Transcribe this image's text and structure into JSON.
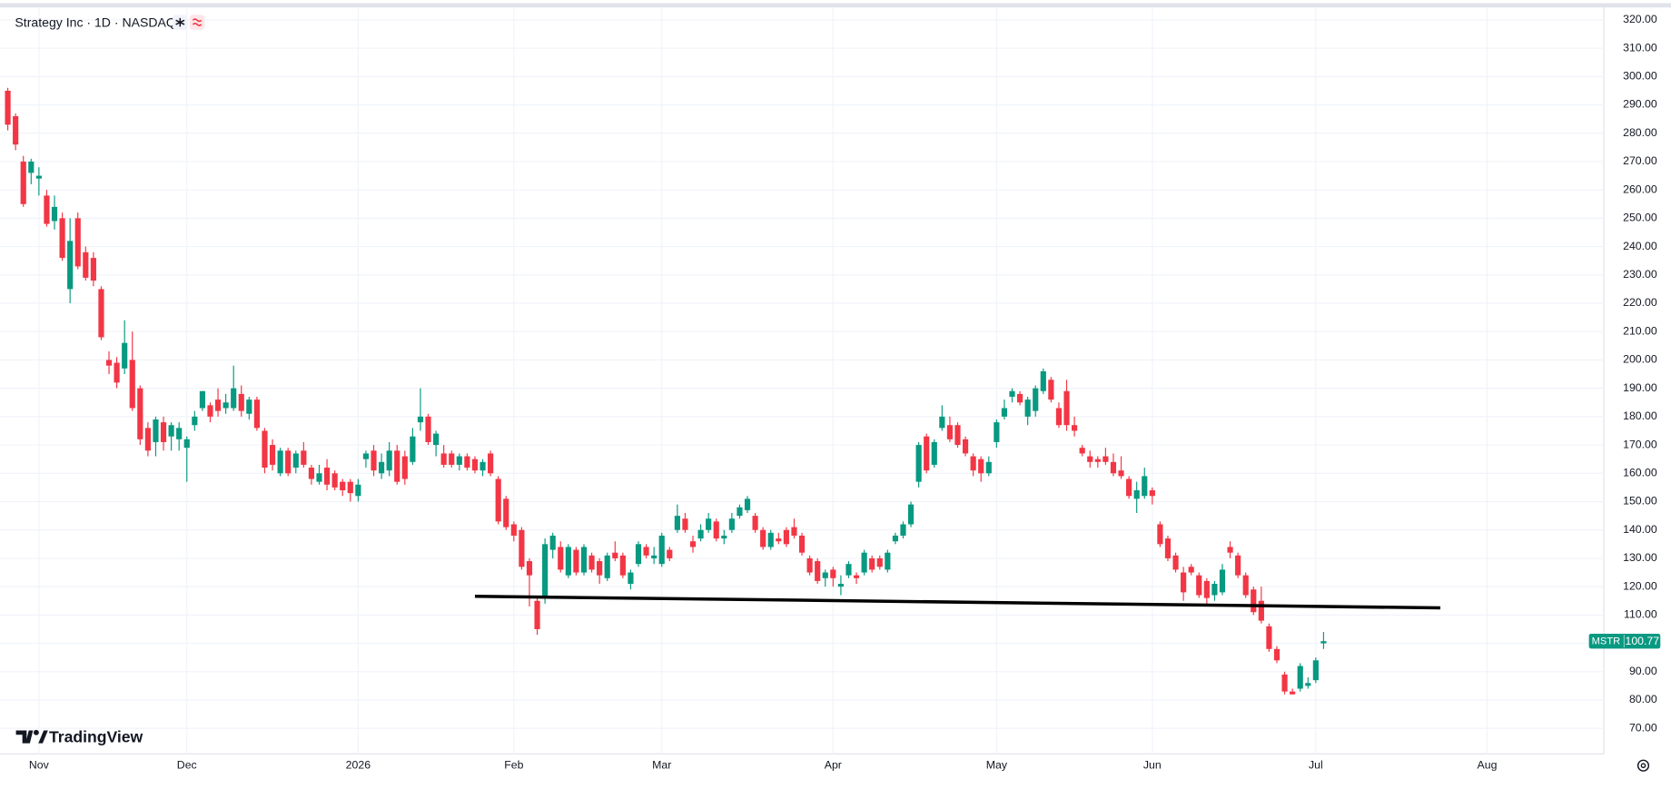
{
  "chart_data": {
    "type": "candlestick",
    "title": "Strategy Inc · 1D · NASDAQ",
    "symbol": "MSTR",
    "brand": "TradingView",
    "up_color": "#089981",
    "down_color": "#f23645",
    "grid": true,
    "xlim": [
      -1,
      205
    ],
    "xticks": [
      {
        "value": 4,
        "label": "Nov"
      },
      {
        "value": 23,
        "label": "Dec"
      },
      {
        "value": 45,
        "label": "2026"
      },
      {
        "value": 65,
        "label": "Feb"
      },
      {
        "value": 84,
        "label": "Mar"
      },
      {
        "value": 106,
        "label": "Apr"
      },
      {
        "value": 127,
        "label": "May"
      },
      {
        "value": 147,
        "label": "Jun"
      },
      {
        "value": 168,
        "label": "Jul"
      },
      {
        "value": 190,
        "label": "Aug"
      }
    ],
    "ylim": [
      61,
      324
    ],
    "yticks": [
      {
        "value": 70,
        "label": "70.00"
      },
      {
        "value": 80,
        "label": "80.00"
      },
      {
        "value": 90,
        "label": "90.00"
      },
      {
        "value": 100,
        "label": "100.00"
      },
      {
        "value": 110,
        "label": "110.00"
      },
      {
        "value": 120,
        "label": "120.00"
      },
      {
        "value": 130,
        "label": "130.00"
      },
      {
        "value": 140,
        "label": "140.00"
      },
      {
        "value": 150,
        "label": "150.00"
      },
      {
        "value": 160,
        "label": "160.00"
      },
      {
        "value": 170,
        "label": "170.00"
      },
      {
        "value": 180,
        "label": "180.00"
      },
      {
        "value": 190,
        "label": "190.00"
      },
      {
        "value": 200,
        "label": "200.00"
      },
      {
        "value": 210,
        "label": "210.00"
      },
      {
        "value": 220,
        "label": "220.00"
      },
      {
        "value": 230,
        "label": "230.00"
      },
      {
        "value": 240,
        "label": "240.00"
      },
      {
        "value": 250,
        "label": "250.00"
      },
      {
        "value": 260,
        "label": "260.00"
      },
      {
        "value": 270,
        "label": "270.00"
      },
      {
        "value": 280,
        "label": "280.00"
      },
      {
        "value": 290,
        "label": "290.00"
      },
      {
        "value": 300,
        "label": "300.00"
      },
      {
        "value": 310,
        "label": "310.00"
      },
      {
        "value": 320,
        "label": "320.00"
      }
    ],
    "trendline": {
      "x": [
        60,
        184
      ],
      "y": [
        116.6,
        112.5
      ]
    },
    "candles": [
      [
        295,
        296,
        281,
        283
      ],
      [
        286,
        287,
        274,
        276
      ],
      [
        270,
        272,
        254,
        255
      ],
      [
        266,
        271,
        262,
        270
      ],
      [
        264,
        268,
        258,
        265
      ],
      [
        258,
        260,
        247,
        248
      ],
      [
        249,
        258,
        246,
        254
      ],
      [
        250,
        252,
        235,
        236
      ],
      [
        225,
        250,
        220,
        242
      ],
      [
        250,
        252,
        232,
        233
      ],
      [
        238,
        240,
        228,
        229
      ],
      [
        236,
        238,
        226,
        228
      ],
      [
        225,
        226,
        207,
        208
      ],
      [
        200,
        203,
        195,
        198
      ],
      [
        199,
        201,
        190,
        192
      ],
      [
        197,
        214,
        195,
        206
      ],
      [
        200,
        210,
        182,
        183
      ],
      [
        190,
        191,
        170,
        172
      ],
      [
        176,
        178,
        166,
        168
      ],
      [
        171,
        180,
        166,
        179
      ],
      [
        178,
        180,
        168,
        171
      ],
      [
        173,
        178,
        168,
        177
      ],
      [
        172,
        178,
        168,
        176
      ],
      [
        169,
        173,
        157,
        172
      ],
      [
        177,
        182,
        175,
        180
      ],
      [
        183,
        189,
        182,
        189
      ],
      [
        184,
        185,
        178,
        180
      ],
      [
        186,
        190,
        180,
        182
      ],
      [
        183,
        188,
        181,
        185
      ],
      [
        183,
        198,
        182,
        190
      ],
      [
        188,
        191,
        180,
        182
      ],
      [
        181,
        187,
        179,
        186
      ],
      [
        186,
        187,
        175,
        176
      ],
      [
        175,
        176,
        160,
        162
      ],
      [
        170,
        172,
        161,
        163
      ],
      [
        160,
        169,
        159,
        168
      ],
      [
        168,
        169,
        159,
        160
      ],
      [
        162,
        168,
        160,
        167
      ],
      [
        168,
        171,
        162,
        163
      ],
      [
        162,
        163,
        156,
        158
      ],
      [
        157,
        163,
        156,
        160
      ],
      [
        162,
        165,
        154,
        156
      ],
      [
        160,
        161,
        154,
        155
      ],
      [
        157,
        158,
        152,
        154
      ],
      [
        157,
        158,
        150,
        153
      ],
      [
        152,
        158,
        150,
        156
      ],
      [
        165,
        168,
        162,
        167
      ],
      [
        168,
        170,
        159,
        161
      ],
      [
        160,
        167,
        158,
        164
      ],
      [
        161,
        171,
        159,
        168
      ],
      [
        168,
        170,
        156,
        157
      ],
      [
        166,
        168,
        156,
        158
      ],
      [
        164,
        176,
        163,
        173
      ],
      [
        178,
        190,
        175,
        180
      ],
      [
        180,
        181,
        170,
        171
      ],
      [
        170,
        175,
        166,
        174
      ],
      [
        167,
        170,
        162,
        163
      ],
      [
        167,
        168,
        162,
        163
      ],
      [
        163,
        167,
        161,
        166
      ],
      [
        166,
        167,
        161,
        162
      ],
      [
        165,
        166,
        160,
        161
      ],
      [
        161,
        165,
        159,
        164
      ],
      [
        167,
        168,
        159,
        160
      ],
      [
        158,
        159,
        142,
        143
      ],
      [
        151,
        152,
        140,
        141
      ],
      [
        142,
        143,
        136,
        138
      ],
      [
        140,
        141,
        126,
        127
      ],
      [
        129,
        130,
        113,
        124
      ],
      [
        115,
        116,
        103,
        105
      ],
      [
        116,
        137,
        114,
        135
      ],
      [
        133,
        139,
        130,
        138
      ],
      [
        134,
        136,
        125,
        126
      ],
      [
        124,
        135,
        123,
        134
      ],
      [
        133,
        134,
        124,
        125
      ],
      [
        125,
        135,
        124,
        134
      ],
      [
        131,
        132,
        125,
        126
      ],
      [
        129,
        130,
        121,
        124
      ],
      [
        123,
        132,
        122,
        131
      ],
      [
        132,
        136,
        129,
        130
      ],
      [
        131,
        132,
        123,
        124
      ],
      [
        121,
        126,
        119,
        125
      ],
      [
        128,
        136,
        127,
        135
      ],
      [
        134,
        135,
        130,
        131
      ],
      [
        130,
        134,
        128,
        131
      ],
      [
        128,
        139,
        127,
        138
      ],
      [
        133,
        134,
        129,
        130
      ],
      [
        140,
        149,
        139,
        145
      ],
      [
        144,
        146,
        139,
        140
      ],
      [
        136,
        138,
        132,
        134
      ],
      [
        137,
        142,
        136,
        140
      ],
      [
        140,
        146,
        139,
        144
      ],
      [
        143,
        144,
        136,
        137
      ],
      [
        137,
        140,
        135,
        138
      ],
      [
        140,
        146,
        139,
        144
      ],
      [
        145,
        149,
        144,
        148
      ],
      [
        147,
        152,
        146,
        151
      ],
      [
        145,
        146,
        139,
        140
      ],
      [
        140,
        141,
        133,
        134
      ],
      [
        134,
        140,
        133,
        139
      ],
      [
        137,
        139,
        135,
        136
      ],
      [
        140,
        141,
        134,
        135
      ],
      [
        141,
        144,
        137,
        138
      ],
      [
        138,
        139,
        131,
        132
      ],
      [
        130,
        131,
        124,
        125
      ],
      [
        129,
        130,
        121,
        122
      ],
      [
        123,
        126,
        120,
        125
      ],
      [
        126,
        127,
        120,
        123
      ],
      [
        120,
        124,
        117,
        121
      ],
      [
        124,
        129,
        123,
        128
      ],
      [
        124,
        125,
        121,
        123
      ],
      [
        125,
        133,
        124,
        132
      ],
      [
        130,
        131,
        125,
        126
      ],
      [
        130,
        131,
        126,
        127
      ],
      [
        126,
        133,
        125,
        132
      ],
      [
        136,
        139,
        135,
        138
      ],
      [
        138,
        143,
        137,
        142
      ],
      [
        142,
        150,
        141,
        149
      ],
      [
        157,
        171,
        155,
        170
      ],
      [
        173,
        174,
        160,
        161
      ],
      [
        163,
        172,
        162,
        171
      ],
      [
        176,
        184,
        175,
        180
      ],
      [
        177,
        180,
        171,
        172
      ],
      [
        177,
        178,
        169,
        170
      ],
      [
        172,
        173,
        166,
        167
      ],
      [
        166,
        167,
        159,
        161
      ],
      [
        165,
        166,
        157,
        160
      ],
      [
        160,
        166,
        159,
        164
      ],
      [
        171,
        179,
        169,
        178
      ],
      [
        180,
        186,
        179,
        183
      ],
      [
        187,
        190,
        185,
        189
      ],
      [
        188,
        189,
        184,
        185
      ],
      [
        180,
        187,
        177,
        186
      ],
      [
        182,
        191,
        180,
        190
      ],
      [
        189,
        197,
        188,
        196
      ],
      [
        193,
        194,
        185,
        186
      ],
      [
        183,
        185,
        176,
        177
      ],
      [
        189,
        193,
        175,
        177
      ],
      [
        177,
        180,
        173,
        175
      ],
      [
        169,
        170,
        166,
        167
      ],
      [
        166,
        168,
        162,
        164
      ],
      [
        165,
        166,
        162,
        164
      ],
      [
        166,
        169,
        163,
        164
      ],
      [
        164,
        167,
        159,
        160
      ],
      [
        161,
        166,
        158,
        159
      ],
      [
        158,
        159,
        151,
        152
      ],
      [
        151,
        157,
        146,
        154
      ],
      [
        152,
        162,
        151,
        159
      ],
      [
        154,
        155,
        149,
        152
      ],
      [
        142,
        143,
        134,
        135
      ],
      [
        137,
        138,
        129,
        130
      ],
      [
        131,
        132,
        125,
        126
      ],
      [
        125,
        127,
        115,
        118
      ],
      [
        127,
        128,
        124,
        125
      ],
      [
        124,
        125,
        116,
        117
      ],
      [
        122,
        123,
        114,
        116
      ],
      [
        117,
        122,
        115,
        121
      ],
      [
        118,
        128,
        117,
        126
      ],
      [
        134,
        136,
        130,
        132
      ],
      [
        131,
        132,
        123,
        124
      ],
      [
        124,
        125,
        116,
        117
      ],
      [
        119,
        120,
        110,
        111
      ],
      [
        115,
        120,
        107,
        108
      ],
      [
        106,
        107,
        97,
        98
      ],
      [
        98,
        99,
        93,
        94
      ],
      [
        89,
        90,
        82,
        83
      ],
      [
        83,
        84,
        82,
        82
      ],
      [
        84,
        93,
        83,
        92
      ],
      [
        85,
        88,
        84,
        86
      ],
      [
        87,
        95,
        86,
        94
      ],
      [
        100,
        104,
        98,
        100.77
      ]
    ]
  }
}
